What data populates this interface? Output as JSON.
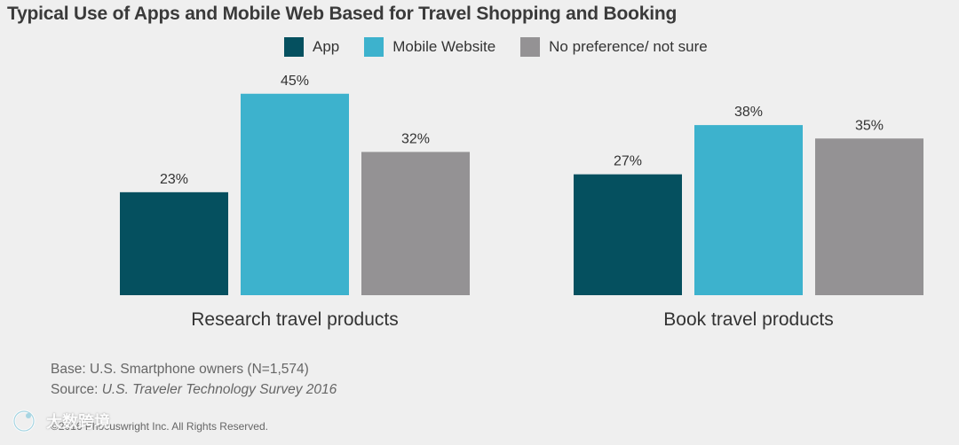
{
  "title": "Typical Use of Apps and Mobile Web Based for Travel Shopping and Booking",
  "colors": {
    "app": "#05505f",
    "mobile_website": "#3db2cd",
    "no_preference": "#949294",
    "background": "#efefef"
  },
  "chart_data": {
    "type": "bar",
    "title": "Typical Use of Apps and Mobile Web Based for Travel Shopping and Booking",
    "categories": [
      "Research travel products",
      "Book travel products"
    ],
    "series": [
      {
        "name": "App",
        "values": [
          23,
          27
        ],
        "labels": [
          "23%",
          "27%"
        ]
      },
      {
        "name": "Mobile Website",
        "values": [
          45,
          38
        ],
        "labels": [
          "45%",
          "38%"
        ]
      },
      {
        "name": "No preference/ not sure",
        "values": [
          32,
          35
        ],
        "labels": [
          "32%",
          "35%"
        ]
      }
    ],
    "unit": "%",
    "ylim": [
      0,
      50
    ],
    "grid": false,
    "legend": "top"
  },
  "footnotes": {
    "base": "Base: U.S. Smartphone owners (N=1,574)",
    "source_prefix": "Source: ",
    "source_title": "U.S. Traveler Technology Survey 2016"
  },
  "copyright": "©2016 Phocuswright Inc. All Rights Reserved.",
  "watermark": "大数跨境"
}
